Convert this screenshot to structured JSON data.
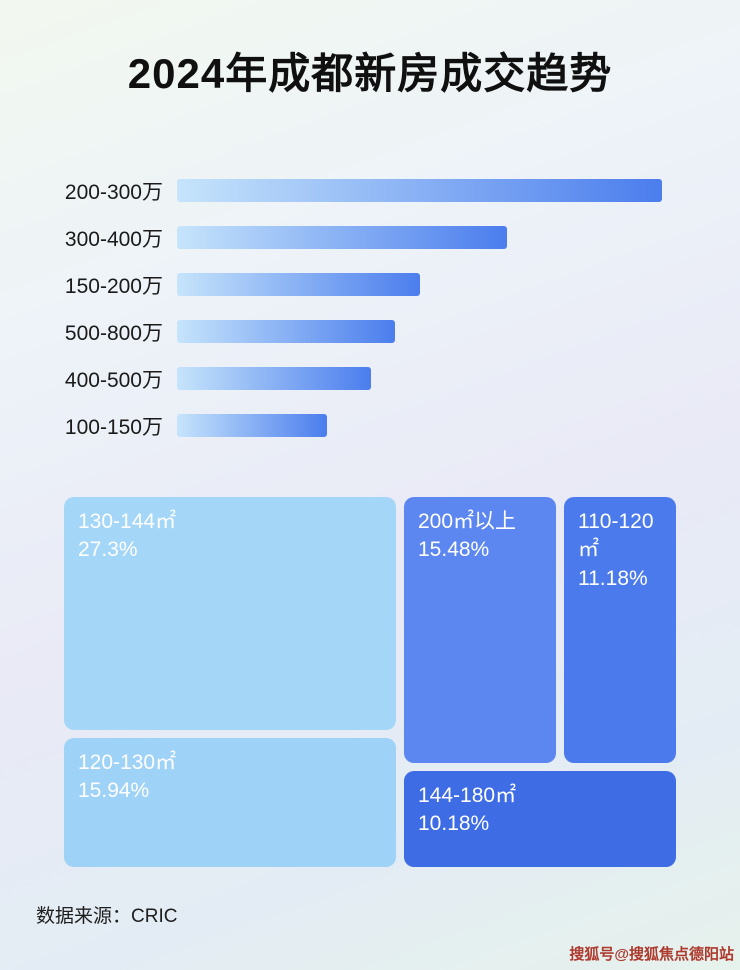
{
  "page": {
    "title": "2024年成都新房成交趋势",
    "source": "数据来源：CRIC",
    "watermark": "搜狐号@搜狐焦点德阳站"
  },
  "colors": {
    "bar_gradient_start": "#c6e4fb",
    "bar_gradient_end": "#4b7ded",
    "watermark_red": "#ae3a2e"
  },
  "chart_data": [
    {
      "type": "bar",
      "orientation": "horizontal",
      "title": "",
      "xlabel": "",
      "ylabel": "",
      "categories": [
        "200-300万",
        "300-400万",
        "150-200万",
        "500-800万",
        "400-500万",
        "100-150万"
      ],
      "values": [
        100,
        68,
        50,
        45,
        40,
        31
      ],
      "value_note": "relative bar length as % of longest bar; no numeric axis shown in image",
      "grid": false,
      "legend": false
    },
    {
      "type": "treemap",
      "title": "",
      "items": [
        {
          "label": "130-144㎡",
          "value": 27.3,
          "display": "27.3%",
          "color": "#a4d6f8"
        },
        {
          "label": "120-130㎡",
          "value": 15.94,
          "display": "15.94%",
          "color": "#9fd2f7"
        },
        {
          "label": "200㎡以上",
          "value": 15.48,
          "display": "15.48%",
          "color": "#5c87f0"
        },
        {
          "label": "110-120㎡",
          "value": 11.18,
          "display": "11.18%",
          "color": "#4b7aec"
        },
        {
          "label": "144-180㎡",
          "value": 10.18,
          "display": "10.18%",
          "color": "#3d6ce4"
        }
      ]
    }
  ]
}
